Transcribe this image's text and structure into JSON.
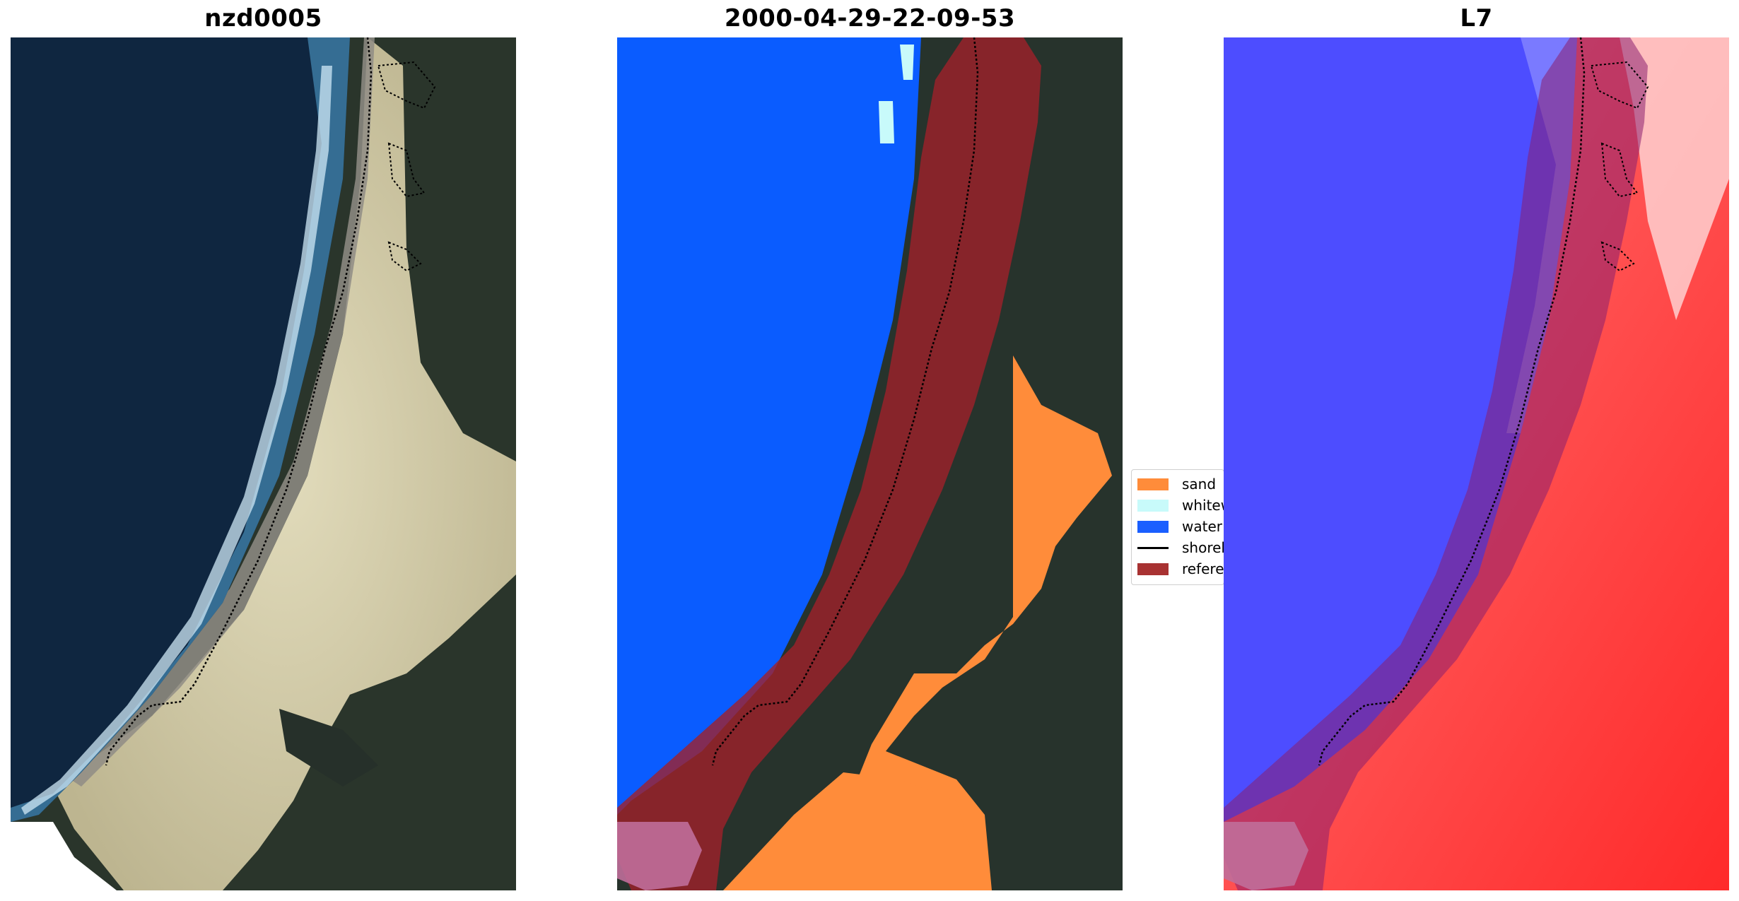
{
  "titles": {
    "left": "nzd0005",
    "middle": "2000-04-29-22-09-53",
    "right": "L7"
  },
  "legend": {
    "items": [
      {
        "label": "sand",
        "color": "#ff8c3a",
        "kind": "patch"
      },
      {
        "label": "whitewater",
        "color": "#c8fafa",
        "kind": "patch"
      },
      {
        "label": "water",
        "color": "#1a5fff",
        "kind": "patch"
      },
      {
        "label": "shoreline",
        "color": "#000000",
        "kind": "line"
      },
      {
        "label": "reference shoreline buffer",
        "color": "#a83232",
        "kind": "patch"
      }
    ]
  },
  "colors": {
    "ocean": "#0f2640",
    "sand": "#cfc7a4",
    "vegetation": "#2a362c",
    "class_water": "#0a5cff",
    "buffer": "#a0202a",
    "index_water": "#4d4dff",
    "index_land": "#ff3333"
  }
}
